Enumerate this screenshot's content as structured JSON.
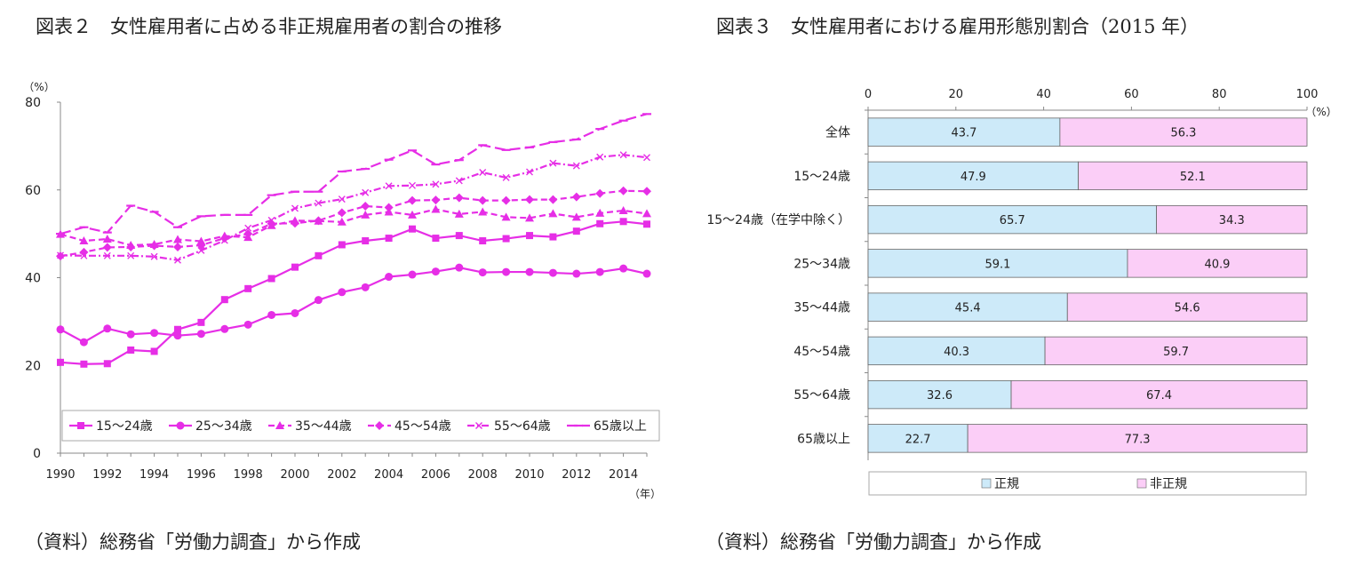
{
  "figure2": {
    "title": "図表２　女性雇用者に占める非正規雇用者の割合の推移",
    "source": "（資料）総務省「労働力調査」から作成"
  },
  "figure3": {
    "title": "図表３　女性雇用者における雇用形態別割合（2015 年）",
    "source": "（資料）総務省「労働力調査」から作成"
  },
  "chart_data": [
    {
      "type": "line",
      "ylabel": "（%）",
      "xlabel": "（年）",
      "ylim": [
        0,
        80
      ],
      "yticks": [
        0,
        20,
        40,
        60,
        80
      ],
      "xlim": [
        1990,
        2015
      ],
      "xticks": [
        1990,
        1992,
        1994,
        1996,
        1998,
        2000,
        2002,
        2004,
        2006,
        2008,
        2010,
        2012,
        2014
      ],
      "grid": false,
      "legend": "bottom",
      "color": "#e62ee6",
      "x": [
        1990,
        1991,
        1992,
        1993,
        1994,
        1995,
        1996,
        1997,
        1998,
        1999,
        2000,
        2001,
        2002,
        2003,
        2004,
        2005,
        2006,
        2007,
        2008,
        2009,
        2010,
        2011,
        2012,
        2013,
        2014,
        2015
      ],
      "series": [
        {
          "name": "15〜24歳",
          "marker": "square",
          "dash": "solid",
          "values": [
            20.7,
            20.3,
            20.4,
            23.5,
            23.2,
            28.2,
            29.8,
            35.0,
            37.5,
            39.8,
            42.4,
            45.0,
            47.5,
            48.4,
            49.0,
            51.1,
            49.0,
            49.6,
            48.4,
            48.9,
            49.6,
            49.3,
            50.6,
            52.3,
            52.8,
            52.2
          ]
        },
        {
          "name": "25〜34歳",
          "marker": "circle",
          "dash": "solid",
          "values": [
            28.2,
            25.3,
            28.4,
            27.1,
            27.4,
            26.8,
            27.2,
            28.3,
            29.3,
            31.5,
            31.9,
            34.9,
            36.7,
            37.8,
            40.2,
            40.7,
            41.4,
            42.3,
            41.2,
            41.3,
            41.3,
            41.1,
            40.9,
            41.3,
            42.1,
            40.9
          ]
        },
        {
          "name": "35〜44歳",
          "marker": "triangle",
          "dash": "dash",
          "values": [
            49.9,
            48.4,
            48.8,
            47.4,
            47.6,
            48.7,
            48.3,
            49.5,
            49.2,
            51.9,
            53.0,
            52.9,
            52.7,
            54.3,
            55.0,
            54.3,
            55.6,
            54.5,
            55.0,
            53.8,
            53.6,
            54.6,
            53.8,
            54.7,
            55.3,
            54.6
          ]
        },
        {
          "name": "45〜54歳",
          "marker": "diamond",
          "dash": "dash",
          "values": [
            44.9,
            45.8,
            46.9,
            47.0,
            47.3,
            47.0,
            47.4,
            49.0,
            50.0,
            52.3,
            52.4,
            53.0,
            54.8,
            56.3,
            56.0,
            57.6,
            57.7,
            58.2,
            57.6,
            57.6,
            57.8,
            57.8,
            58.4,
            59.2,
            59.8,
            59.7
          ]
        },
        {
          "name": "55〜64歳",
          "marker": "x",
          "dash": "dashdot",
          "values": [
            45.1,
            45.0,
            45.0,
            45.0,
            44.8,
            44.0,
            46.2,
            48.5,
            51.3,
            53.1,
            55.8,
            57.0,
            57.9,
            59.4,
            60.9,
            61.0,
            61.3,
            62.1,
            64.0,
            62.8,
            64.1,
            66.1,
            65.5,
            67.5,
            68.0,
            67.4
          ]
        },
        {
          "name": "65歳以上",
          "marker": "dash",
          "dash": "longdash",
          "values": [
            50.0,
            51.5,
            50.3,
            56.4,
            55.0,
            51.5,
            54.0,
            54.3,
            54.3,
            58.8,
            59.6,
            59.6,
            64.2,
            64.8,
            66.9,
            69.0,
            65.8,
            66.8,
            70.2,
            69.1,
            69.7,
            70.9,
            71.5,
            73.9,
            75.8,
            77.3
          ]
        }
      ]
    },
    {
      "type": "bar",
      "orientation": "horizontal",
      "stacked": true,
      "xlim": [
        0,
        100
      ],
      "xticks": [
        0,
        20,
        40,
        60,
        80,
        100
      ],
      "unit_label": "（%）",
      "grid": false,
      "legend": "bottom",
      "categories": [
        "全体",
        "15〜24歳",
        "15〜24歳（在学中除く）",
        "25〜34歳",
        "35〜44歳",
        "45〜54歳",
        "55〜64歳",
        "65歳以上"
      ],
      "series": [
        {
          "name": "正規",
          "color": "#cdeaf9",
          "values": [
            43.7,
            47.9,
            65.7,
            59.1,
            45.4,
            40.3,
            32.6,
            22.7
          ]
        },
        {
          "name": "非正規",
          "color": "#fbcef7",
          "values": [
            56.3,
            52.1,
            34.3,
            40.9,
            54.6,
            59.7,
            67.4,
            77.3
          ]
        }
      ]
    }
  ]
}
